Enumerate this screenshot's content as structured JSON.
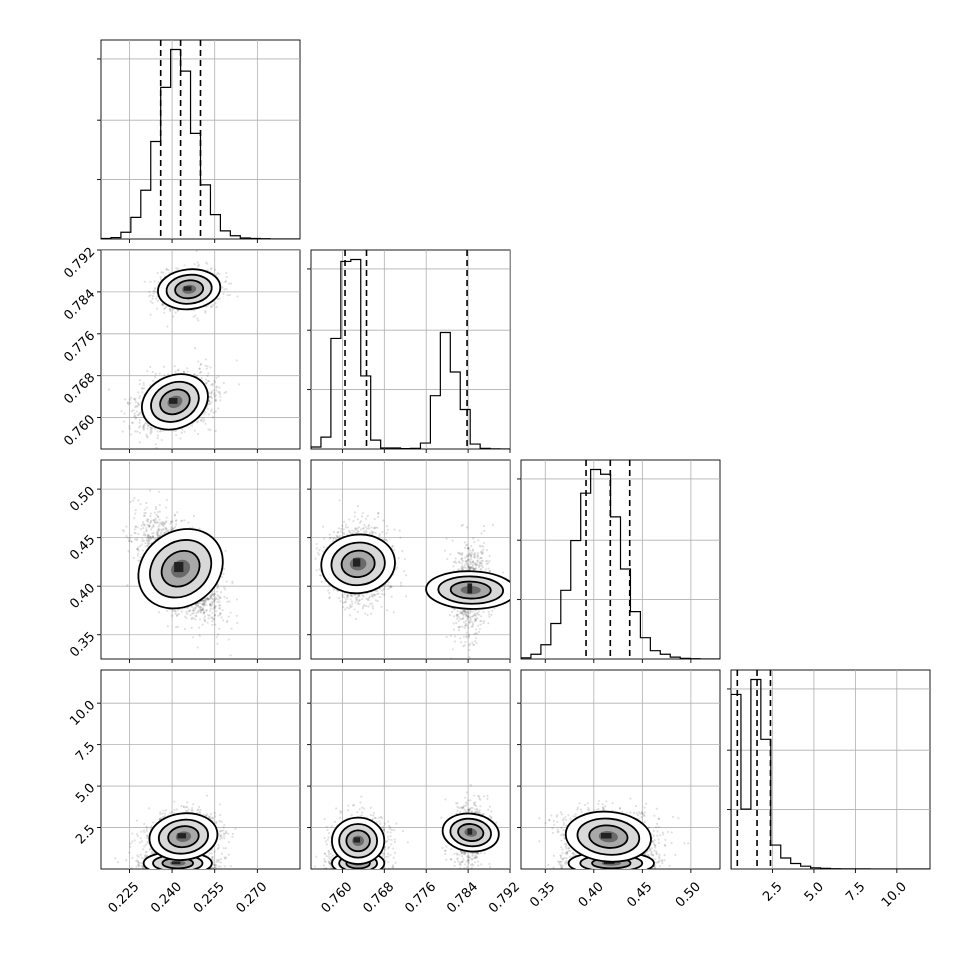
{
  "chart_data": [
    {
      "type": "corner",
      "grid": true,
      "parameters": [
        {
          "index": 0,
          "range": [
            0.215,
            0.285
          ],
          "ticks": [
            0.225,
            0.24,
            0.255,
            0.27
          ],
          "tick_labels": [
            "0.225",
            "0.240",
            "0.255",
            "0.270"
          ]
        },
        {
          "index": 1,
          "range": [
            0.754,
            0.792
          ],
          "ticks": [
            0.76,
            0.768,
            0.776,
            0.784,
            0.792
          ],
          "tick_labels": [
            "0.760",
            "0.768",
            "0.776",
            "0.784",
            "0.792"
          ]
        },
        {
          "index": 2,
          "range": [
            0.325,
            0.53
          ],
          "ticks": [
            0.35,
            0.4,
            0.45,
            0.5
          ],
          "tick_labels": [
            "0.35",
            "0.40",
            "0.45",
            "0.50"
          ]
        },
        {
          "index": 3,
          "range": [
            0.0,
            12.0
          ],
          "ticks": [
            2.5,
            5.0,
            7.5,
            10.0
          ],
          "tick_labels": [
            "2.5",
            "5.0",
            "7.5",
            "10.0"
          ]
        }
      ],
      "histograms": [
        {
          "param": 0,
          "bin_edges": [
            0.215,
            0.2185,
            0.222,
            0.2255,
            0.229,
            0.2325,
            0.236,
            0.2395,
            0.243,
            0.2465,
            0.25,
            0.2535,
            0.257,
            0.2605,
            0.264,
            0.2675,
            0.271,
            0.2745,
            0.278,
            0.2815,
            0.285
          ],
          "counts": [
            2,
            5,
            25,
            80,
            180,
            360,
            560,
            700,
            620,
            390,
            200,
            90,
            30,
            12,
            4,
            2,
            1,
            0,
            0,
            0
          ],
          "quantiles": [
            0.236,
            0.243,
            0.25
          ]
        },
        {
          "param": 1,
          "bin_edges": [
            0.754,
            0.7559,
            0.7578,
            0.7597,
            0.7616,
            0.7635,
            0.7654,
            0.7673,
            0.7692,
            0.7711,
            0.773,
            0.7749,
            0.7768,
            0.7787,
            0.7806,
            0.7825,
            0.7844,
            0.7863,
            0.7882,
            0.7901,
            0.792
          ],
          "counts": [
            10,
            60,
            560,
            950,
            960,
            370,
            45,
            5,
            5,
            2,
            3,
            30,
            270,
            590,
            390,
            200,
            25,
            3,
            1,
            0
          ],
          "quantiles": [
            0.7605,
            0.7646,
            0.7838
          ]
        },
        {
          "param": 2,
          "bin_edges": [
            0.325,
            0.33525,
            0.3455,
            0.35575,
            0.366,
            0.37625,
            0.3865,
            0.39675,
            0.407,
            0.41725,
            0.4275,
            0.43775,
            0.448,
            0.45825,
            0.4685,
            0.47875,
            0.489,
            0.49925,
            0.5095,
            0.51975,
            0.53
          ],
          "counts": [
            5,
            20,
            60,
            150,
            290,
            500,
            700,
            800,
            780,
            600,
            380,
            200,
            90,
            35,
            20,
            8,
            3,
            1,
            0,
            0
          ],
          "quantiles": [
            0.392,
            0.417,
            0.437
          ]
        },
        {
          "param": 3,
          "bin_edges": [
            0.0,
            0.6,
            1.2,
            1.8,
            2.4,
            3.0,
            3.6,
            4.2,
            4.8,
            5.4,
            6.0,
            6.6,
            7.2,
            7.8,
            8.4,
            9.0,
            9.6,
            10.2,
            10.8,
            11.4,
            12.0
          ],
          "counts": [
            1750,
            600,
            1900,
            1300,
            240,
            110,
            55,
            28,
            12,
            6,
            3,
            2,
            1,
            1,
            0,
            0,
            0,
            0,
            0,
            0
          ],
          "quantiles": [
            0.38,
            1.57,
            2.38
          ]
        }
      ],
      "pairs": [
        {
          "x_param": 0,
          "y_param": 1,
          "modes": [
            {
              "mean": [
                0.241,
                0.763
              ],
              "sd": [
                0.006,
                0.0025
              ],
              "rho": 0.3,
              "weight": 0.68
            },
            {
              "mean": [
                0.246,
                0.7845
              ],
              "sd": [
                0.0055,
                0.0019
              ],
              "rho": 0.1,
              "weight": 0.32
            }
          ]
        },
        {
          "x_param": 0,
          "y_param": 2,
          "modes": [
            {
              "mean": [
                0.243,
                0.418
              ],
              "sd": [
                0.0065,
                0.023
              ],
              "rho": -0.55,
              "weight": 1.0
            }
          ]
        },
        {
          "x_param": 1,
          "y_param": 2,
          "modes": [
            {
              "mean": [
                0.763,
                0.423
              ],
              "sd": [
                0.0028,
                0.019
              ],
              "rho": -0.05,
              "weight": 0.68
            },
            {
              "mean": [
                0.7845,
                0.396
              ],
              "sd": [
                0.0018,
                0.023
              ],
              "rho": 0.05,
              "weight": 0.32
            }
          ]
        },
        {
          "x_param": 0,
          "y_param": 3,
          "modes": [
            {
              "mean": [
                0.242,
                0.35
              ],
              "sd": [
                0.006,
                0.35
              ],
              "rho": 0.0,
              "weight": 0.42
            },
            {
              "mean": [
                0.244,
                1.95
              ],
              "sd": [
                0.006,
                0.7
              ],
              "rho": 0.1,
              "weight": 0.58
            }
          ]
        },
        {
          "x_param": 1,
          "y_param": 3,
          "modes": [
            {
              "mean": [
                0.763,
                0.35
              ],
              "sd": [
                0.0025,
                0.35
              ],
              "rho": 0.0,
              "weight": 0.3
            },
            {
              "mean": [
                0.763,
                1.7
              ],
              "sd": [
                0.0025,
                0.7
              ],
              "rho": 0.0,
              "weight": 0.38
            },
            {
              "mean": [
                0.7845,
                2.2
              ],
              "sd": [
                0.0018,
                0.85
              ],
              "rho": 0.1,
              "weight": 0.32
            }
          ]
        },
        {
          "x_param": 2,
          "y_param": 3,
          "modes": [
            {
              "mean": [
                0.418,
                0.35
              ],
              "sd": [
                0.022,
                0.35
              ],
              "rho": 0.0,
              "weight": 0.42
            },
            {
              "mean": [
                0.415,
                1.95
              ],
              "sd": [
                0.022,
                0.75
              ],
              "rho": -0.1,
              "weight": 0.58
            }
          ]
        }
      ]
    }
  ]
}
